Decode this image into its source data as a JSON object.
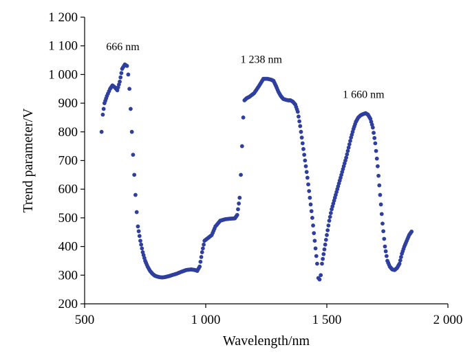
{
  "chart_data": {
    "type": "scatter",
    "title": "",
    "xlabel": "Wavelength/nm",
    "ylabel": "Trend parameter/V",
    "xlim": [
      500,
      2000
    ],
    "ylim": [
      200,
      1200
    ],
    "xticks": [
      500,
      1000,
      1500,
      2000
    ],
    "xtick_labels": [
      "500",
      "1 000",
      "1 500",
      "2 000"
    ],
    "yticks": [
      200,
      300,
      400,
      500,
      600,
      700,
      800,
      900,
      1000,
      1100,
      1200
    ],
    "ytick_labels": [
      "200",
      "300",
      "400",
      "500",
      "600",
      "700",
      "800",
      "900",
      "1 000",
      "1 100",
      "1 200"
    ],
    "grid": false,
    "legend": "none",
    "marker_color": "#2f3f9e",
    "annotations": [
      {
        "text": "666 nm",
        "x": 666,
        "y": 1032
      },
      {
        "text": "1 238 nm",
        "x": 1238,
        "y": 988
      },
      {
        "text": "1 660 nm",
        "x": 1660,
        "y": 865
      }
    ],
    "series": [
      {
        "curve": [
          [
            570,
            800
          ],
          [
            575,
            860
          ],
          [
            582,
            900
          ],
          [
            592,
            925
          ],
          [
            605,
            950
          ],
          [
            615,
            962
          ],
          [
            625,
            955
          ],
          [
            635,
            945
          ],
          [
            645,
            975
          ],
          [
            655,
            1020
          ],
          [
            666,
            1035
          ],
          [
            675,
            1030
          ],
          [
            680,
            1000
          ],
          [
            685,
            950
          ],
          [
            690,
            880
          ],
          [
            695,
            800
          ],
          [
            700,
            720
          ],
          [
            705,
            650
          ],
          [
            710,
            580
          ],
          [
            715,
            520
          ],
          [
            720,
            470
          ],
          [
            730,
            420
          ],
          [
            740,
            380
          ],
          [
            750,
            350
          ],
          [
            760,
            330
          ],
          [
            770,
            315
          ],
          [
            780,
            305
          ],
          [
            790,
            298
          ],
          [
            800,
            295
          ],
          [
            810,
            293
          ],
          [
            820,
            292
          ],
          [
            830,
            293
          ],
          [
            840,
            295
          ],
          [
            850,
            297
          ],
          [
            860,
            300
          ],
          [
            880,
            305
          ],
          [
            900,
            312
          ],
          [
            920,
            318
          ],
          [
            940,
            320
          ],
          [
            955,
            318
          ],
          [
            965,
            315
          ],
          [
            975,
            330
          ],
          [
            985,
            380
          ],
          [
            995,
            420
          ],
          [
            1010,
            430
          ],
          [
            1025,
            440
          ],
          [
            1040,
            470
          ],
          [
            1060,
            490
          ],
          [
            1080,
            495
          ],
          [
            1100,
            497
          ],
          [
            1120,
            498
          ],
          [
            1130,
            510
          ],
          [
            1140,
            570
          ],
          [
            1145,
            650
          ],
          [
            1150,
            750
          ],
          [
            1155,
            850
          ],
          [
            1160,
            910
          ],
          [
            1170,
            918
          ],
          [
            1180,
            922
          ],
          [
            1200,
            935
          ],
          [
            1220,
            960
          ],
          [
            1238,
            985
          ],
          [
            1255,
            985
          ],
          [
            1270,
            982
          ],
          [
            1280,
            978
          ],
          [
            1290,
            960
          ],
          [
            1300,
            940
          ],
          [
            1310,
            925
          ],
          [
            1320,
            915
          ],
          [
            1330,
            912
          ],
          [
            1340,
            910
          ],
          [
            1350,
            910
          ],
          [
            1360,
            905
          ],
          [
            1370,
            895
          ],
          [
            1380,
            870
          ],
          [
            1390,
            820
          ],
          [
            1400,
            760
          ],
          [
            1410,
            700
          ],
          [
            1420,
            640
          ],
          [
            1430,
            570
          ],
          [
            1440,
            500
          ],
          [
            1450,
            420
          ],
          [
            1460,
            340
          ],
          [
            1465,
            290
          ],
          [
            1470,
            285
          ],
          [
            1475,
            300
          ],
          [
            1480,
            340
          ],
          [
            1490,
            390
          ],
          [
            1500,
            440
          ],
          [
            1510,
            490
          ],
          [
            1520,
            530
          ],
          [
            1530,
            560
          ],
          [
            1540,
            590
          ],
          [
            1550,
            620
          ],
          [
            1560,
            650
          ],
          [
            1570,
            680
          ],
          [
            1580,
            710
          ],
          [
            1590,
            745
          ],
          [
            1600,
            780
          ],
          [
            1610,
            810
          ],
          [
            1620,
            835
          ],
          [
            1630,
            850
          ],
          [
            1640,
            858
          ],
          [
            1650,
            862
          ],
          [
            1660,
            865
          ],
          [
            1670,
            860
          ],
          [
            1680,
            845
          ],
          [
            1690,
            815
          ],
          [
            1700,
            760
          ],
          [
            1710,
            680
          ],
          [
            1720,
            580
          ],
          [
            1730,
            480
          ],
          [
            1740,
            400
          ],
          [
            1750,
            350
          ],
          [
            1760,
            330
          ],
          [
            1770,
            320
          ],
          [
            1780,
            318
          ],
          [
            1790,
            325
          ],
          [
            1800,
            340
          ],
          [
            1810,
            375
          ],
          [
            1820,
            400
          ],
          [
            1830,
            420
          ],
          [
            1840,
            440
          ],
          [
            1850,
            452
          ]
        ]
      }
    ]
  }
}
